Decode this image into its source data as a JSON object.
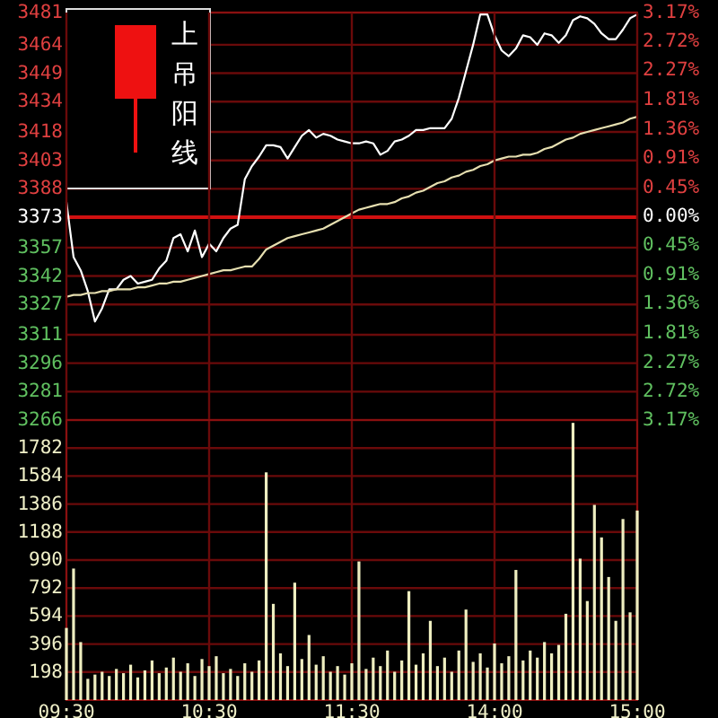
{
  "chart_data": [
    {
      "type": "line",
      "annotations": [
        "上吊阳线"
      ],
      "ylim": [
        3266,
        3481
      ],
      "categories": [
        null,
        null,
        null,
        null,
        null,
        null,
        null,
        null,
        null,
        null,
        null,
        null,
        null,
        null,
        null,
        null,
        null,
        null,
        null,
        null,
        null,
        null,
        null,
        null,
        null,
        null,
        null,
        null,
        null,
        null,
        null,
        null,
        null,
        null,
        null,
        null,
        null,
        null,
        null,
        null,
        null,
        null,
        null,
        null,
        null,
        null,
        null,
        null,
        null,
        null,
        null,
        null,
        null,
        null,
        null,
        null,
        null,
        null,
        null,
        null,
        null,
        null,
        null,
        null,
        null,
        null,
        null,
        null,
        null,
        null,
        null,
        null,
        null,
        null,
        null,
        null,
        null,
        null,
        null,
        null,
        null
      ],
      "yticks": [
        3481,
        3464,
        3449,
        3434,
        3418,
        3403,
        3388,
        3373,
        3357,
        3342,
        3327,
        3311,
        3296,
        3281,
        3266
      ],
      "y2lim": [
        -3.17,
        3.17
      ],
      "y2ticks": [
        {
          "value": 3.17,
          "label": "3.17%"
        },
        {
          "value": 2.72,
          "label": "2.72%"
        },
        {
          "value": 2.27,
          "label": "2.27%"
        },
        {
          "value": 1.81,
          "label": "1.81%"
        },
        {
          "value": 1.36,
          "label": "1.36%"
        },
        {
          "value": 0.91,
          "label": "0.91%"
        },
        {
          "value": 0.45,
          "label": "0.45%"
        },
        {
          "value": 0,
          "label": "0.00%"
        },
        {
          "value": -0.45,
          "label": "0.45%"
        },
        {
          "value": -0.91,
          "label": "0.91%"
        },
        {
          "value": -1.36,
          "label": "1.36%"
        },
        {
          "value": -1.81,
          "label": "1.81%"
        },
        {
          "value": -2.27,
          "label": "2.27%"
        },
        {
          "value": -2.72,
          "label": "2.72%"
        },
        {
          "value": -3.17,
          "label": "3.17%"
        }
      ],
      "tick_labels": "y",
      "grid": true,
      "ref_lines": [
        {
          "axis": "y",
          "value": 3373,
          "color": "#d01010"
        }
      ],
      "series": [
        {
          "color": "#ffffff",
          "values": [
            3381,
            3352,
            3345,
            3334,
            3318,
            3325,
            3335,
            3335,
            3340,
            3342,
            3338,
            3339,
            3340,
            3346,
            3350,
            3362,
            3364,
            3355,
            3366,
            3352,
            3359,
            3355,
            3362,
            3367,
            3369,
            3393,
            3400,
            3405,
            3411,
            3411,
            3410,
            3404,
            3410,
            3416,
            3419,
            3415,
            3417,
            3416,
            3414,
            3413,
            3412,
            3412,
            3413,
            3412,
            3406,
            3408,
            3413,
            3414,
            3416,
            3419,
            3419,
            3420,
            3420,
            3420,
            3425,
            3436,
            3450,
            3464,
            3480,
            3480,
            3469,
            3461,
            3458,
            3462,
            3469,
            3468,
            3464,
            3470,
            3469,
            3465,
            3469,
            3477,
            3479,
            3478,
            3475,
            3470,
            3467,
            3467,
            3472,
            3478,
            3480
          ]
        },
        {
          "color": "#e6dfb0",
          "values": [
            3331,
            3332,
            3332,
            3333,
            3333,
            3334,
            3334,
            3335,
            3335,
            3335,
            3336,
            3336,
            3337,
            3338,
            3338,
            3339,
            3339,
            3340,
            3341,
            3342,
            3343,
            3344,
            3345,
            3345,
            3346,
            3347,
            3347,
            3351,
            3356,
            3358,
            3360,
            3362,
            3363,
            3364,
            3365,
            3366,
            3367,
            3369,
            3371,
            3373,
            3375,
            3377,
            3378,
            3379,
            3380,
            3380,
            3381,
            3383,
            3384,
            3386,
            3387,
            3389,
            3391,
            3392,
            3394,
            3395,
            3397,
            3398,
            3400,
            3401,
            3403,
            3404,
            3405,
            3405,
            3406,
            3406,
            3407,
            3409,
            3410,
            3412,
            3414,
            3415,
            3417,
            3418,
            3419,
            3420,
            3421,
            3422,
            3423,
            3425,
            3426
          ]
        }
      ]
    },
    {
      "type": "bar",
      "ylim": [
        0,
        1980
      ],
      "categories": [
        "09:30",
        null,
        null,
        null,
        null,
        null,
        null,
        null,
        null,
        null,
        null,
        null,
        null,
        null,
        null,
        null,
        null,
        null,
        null,
        null,
        "10:30",
        null,
        null,
        null,
        null,
        null,
        null,
        null,
        null,
        null,
        null,
        null,
        null,
        null,
        null,
        null,
        null,
        null,
        null,
        null,
        "11:30",
        null,
        null,
        null,
        null,
        null,
        null,
        null,
        null,
        null,
        null,
        null,
        null,
        null,
        null,
        null,
        null,
        null,
        null,
        null,
        "14:00",
        null,
        null,
        null,
        null,
        null,
        null,
        null,
        null,
        null,
        null,
        null,
        null,
        null,
        null,
        null,
        null,
        null,
        null,
        null,
        "15:00"
      ],
      "yticks": [
        198,
        396,
        594,
        792,
        990,
        1188,
        1386,
        1584,
        1782
      ],
      "grid": true,
      "series": [
        {
          "color": "#eeeec0",
          "values": [
            510,
            930,
            410,
            150,
            180,
            200,
            170,
            220,
            190,
            250,
            160,
            210,
            280,
            190,
            230,
            300,
            200,
            260,
            170,
            290,
            240,
            310,
            190,
            220,
            170,
            260,
            200,
            280,
            1610,
            680,
            330,
            240,
            830,
            290,
            460,
            250,
            310,
            200,
            240,
            180,
            260,
            980,
            220,
            300,
            240,
            350,
            200,
            280,
            770,
            250,
            330,
            560,
            240,
            300,
            200,
            350,
            640,
            270,
            330,
            230,
            400,
            260,
            310,
            920,
            280,
            350,
            300,
            410,
            330,
            390,
            610,
            1960,
            1000,
            700,
            1380,
            1150,
            870,
            560,
            1280,
            620,
            1340
          ]
        }
      ]
    }
  ]
}
